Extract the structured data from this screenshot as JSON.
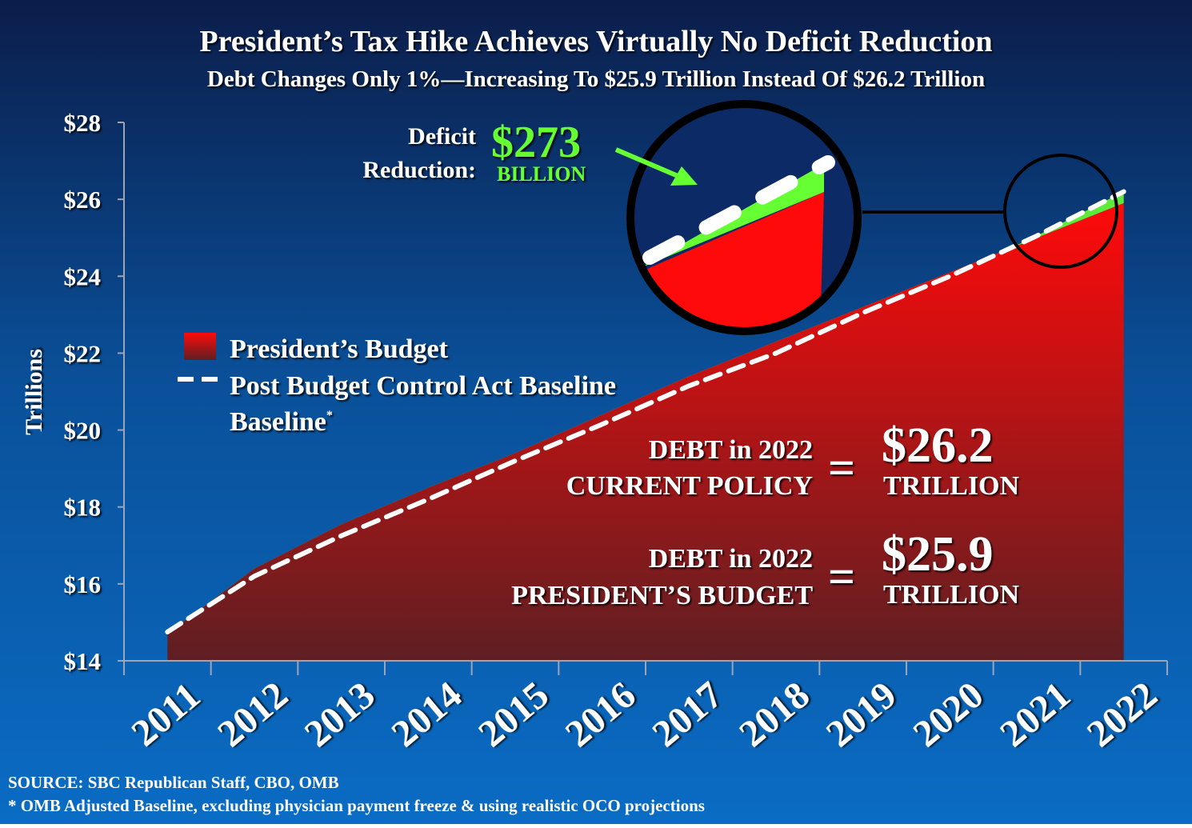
{
  "chart_data": {
    "type": "area",
    "title": "President’s Tax Hike Achieves Virtually No Deficit Reduction",
    "subtitle": "Debt Changes Only 1%—Increasing To $25.9 Trillion Instead Of $26.2 Trillion",
    "ylabel": "Trillions",
    "xlabel": "",
    "ylim": [
      14,
      28
    ],
    "yticks": [
      "$14",
      "$16",
      "$18",
      "$20",
      "$22",
      "$24",
      "$26",
      "$28"
    ],
    "categories": [
      "2011",
      "2012",
      "2013",
      "2014",
      "2015",
      "2016",
      "2017",
      "2018",
      "2019",
      "2020",
      "2021",
      "2022"
    ],
    "grid": false,
    "legend_position": "left-middle",
    "series": [
      {
        "name": "President’s Budget",
        "style": "filled-area",
        "color": "#e01010",
        "values": [
          14.7,
          16.4,
          17.55,
          18.5,
          19.4,
          20.4,
          21.4,
          22.3,
          23.2,
          24.1,
          25.0,
          25.9
        ]
      },
      {
        "name": "Post Budget Control Act Baseline",
        "name_suffix": "*",
        "style": "dashed-line",
        "color": "#ffffff",
        "values": [
          14.75,
          16.2,
          17.25,
          18.2,
          19.2,
          20.15,
          21.15,
          22.0,
          23.05,
          24.0,
          25.05,
          26.2
        ]
      }
    ],
    "annotations": {
      "deficit_label_1": "Deficit",
      "deficit_label_2": "Reduction:",
      "deficit_value": "$273",
      "deficit_unit": "BILLION",
      "current_policy_1": "DEBT in 2022",
      "current_policy_2": "CURRENT POLICY",
      "current_value": "$26.2",
      "current_unit": "TRILLION",
      "president_1": "DEBT in 2022",
      "president_2": "PRESIDENT’S BUDGET",
      "president_value": "$25.9",
      "president_unit": "TRILLION",
      "equals": "="
    }
  },
  "footer": {
    "source": "SOURCE: SBC Republican Staff, CBO, OMB",
    "note": "* OMB Adjusted Baseline, excluding physician payment freeze & using realistic  OCO projections"
  },
  "colors": {
    "deficit_green": "#66ff33",
    "background_top": "#0b1d4a",
    "background_bottom": "#0a6cc4"
  }
}
